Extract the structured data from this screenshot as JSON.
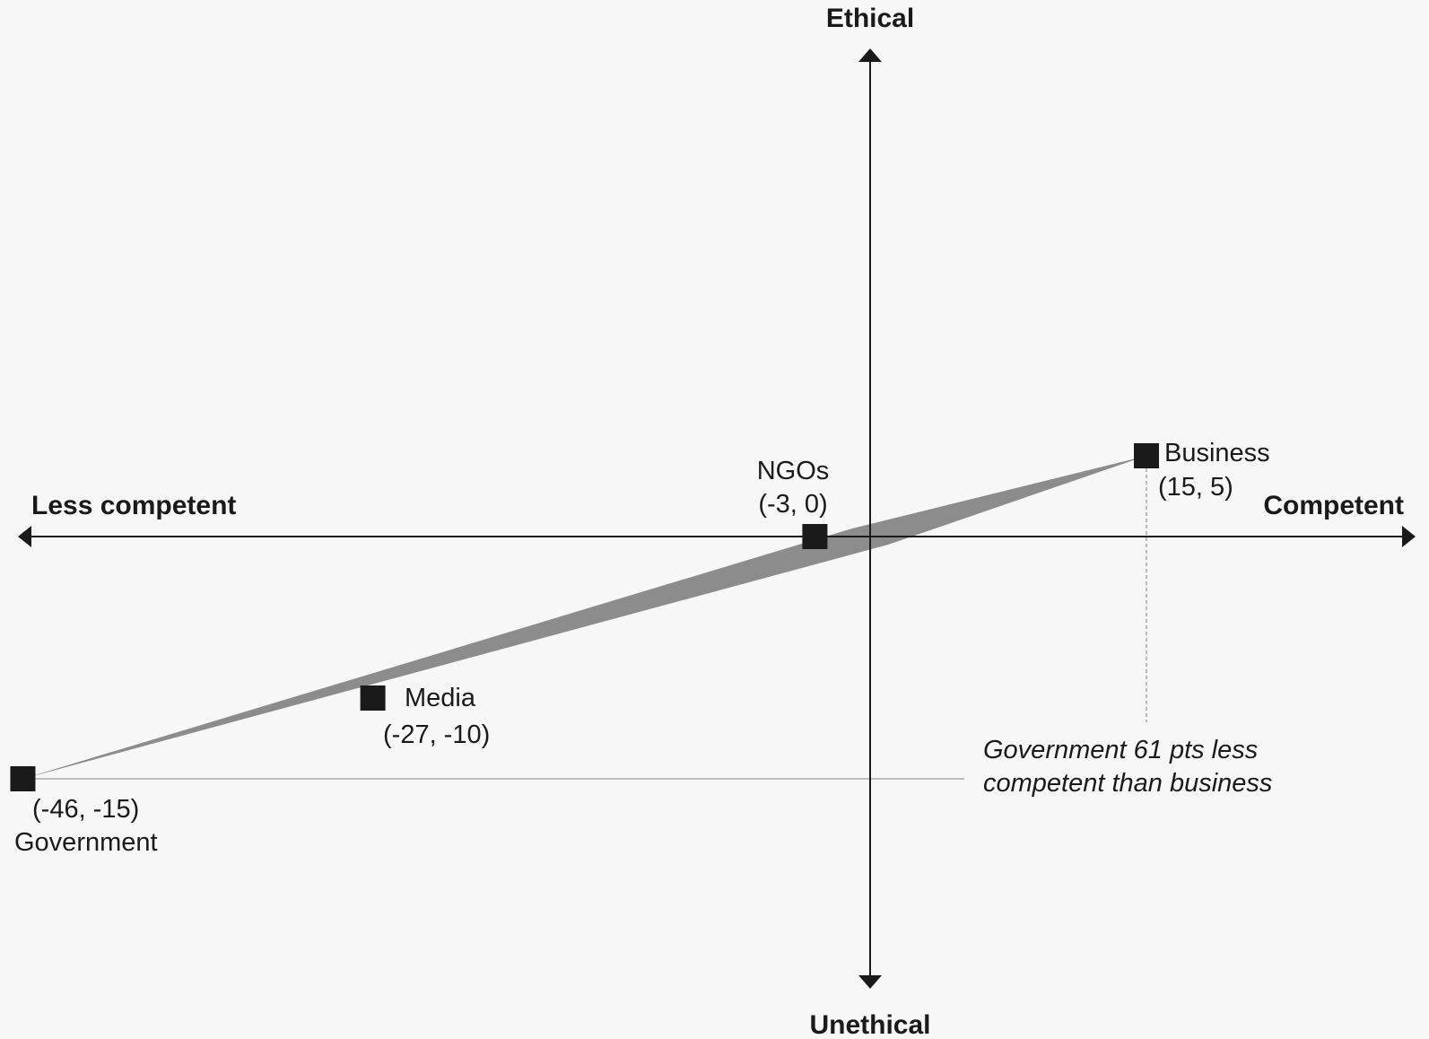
{
  "chart_data": {
    "type": "scatter",
    "axes": {
      "x_left_label": "Less competent",
      "x_right_label": "Competent",
      "y_top_label": "Ethical",
      "y_bottom_label": "Unethical"
    },
    "grid": false,
    "points": [
      {
        "name": "Business",
        "coord_label": "(15, 5)",
        "x": 15,
        "y": 5
      },
      {
        "name": "NGOs",
        "coord_label": "(-3, 0)",
        "x": -3,
        "y": 0
      },
      {
        "name": "Media",
        "coord_label": "(-27, -10)",
        "x": -27,
        "y": -10
      },
      {
        "name": "Government",
        "coord_label": "(-46, -15)",
        "x": -46,
        "y": -15
      }
    ],
    "annotation": {
      "line1": "Government 61 pts less",
      "line2": "competent than business"
    },
    "colors": {
      "marker": "#1a1a1a",
      "axis": "#1a1a1a",
      "wedge": "#8c8c8c",
      "reference": "#9a9a9a",
      "background": "#f7f7f7"
    }
  }
}
